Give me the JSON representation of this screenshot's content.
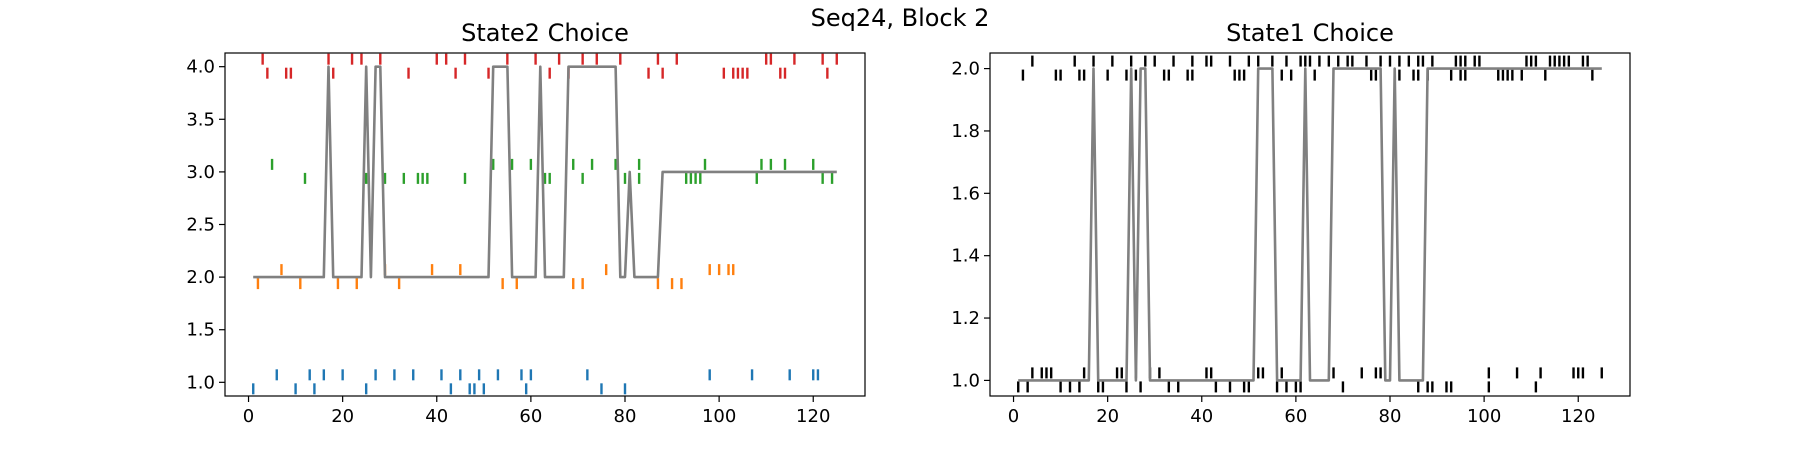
{
  "figure": {
    "suptitle": "Seq24, Block 2"
  },
  "chart_data": [
    {
      "type": "line",
      "title": "State2 Choice",
      "xlim": [
        -5,
        131
      ],
      "ylim": [
        0.87,
        4.13
      ],
      "xticks": [
        0,
        20,
        40,
        60,
        80,
        100,
        120
      ],
      "yticks": [
        1.0,
        1.5,
        2.0,
        2.5,
        3.0,
        3.5,
        4.0
      ],
      "ytick_labels": [
        "1.0",
        "1.5",
        "2.0",
        "2.5",
        "3.0",
        "3.5",
        "4.0"
      ],
      "colors": {
        "line": "#808080",
        "1": "#1f77b4",
        "2": "#ff7f0e",
        "3": "#2ca02c",
        "4": "#d62728"
      },
      "line": {
        "x": [
          1,
          16,
          17,
          18,
          24,
          25,
          26,
          27,
          28,
          29,
          51,
          52,
          55,
          56,
          61,
          62,
          63,
          64,
          67,
          68,
          78,
          79,
          80,
          81,
          82,
          83,
          87,
          88,
          125
        ],
        "y": [
          2,
          2,
          4,
          2,
          2,
          4,
          2,
          4,
          4,
          2,
          2,
          4,
          4,
          2,
          2,
          4,
          2,
          2,
          2,
          4,
          4,
          2,
          2,
          3,
          2,
          2,
          2,
          3,
          3
        ]
      },
      "markers": [
        {
          "level": 4,
          "up": [
            3,
            17,
            22,
            24,
            28,
            40,
            42,
            46,
            55,
            61,
            66,
            71,
            74,
            79,
            87,
            91,
            110,
            111,
            116,
            122,
            125
          ],
          "down": [
            4,
            8,
            9,
            18,
            34,
            44,
            51,
            62,
            64,
            68,
            85,
            88,
            101,
            103,
            104,
            105,
            106,
            113,
            114,
            123
          ]
        },
        {
          "level": 3,
          "up": [
            5,
            52,
            56,
            60,
            69,
            73,
            78,
            83,
            97,
            109,
            111,
            114,
            120
          ],
          "down": [
            12,
            25,
            29,
            33,
            36,
            37,
            38,
            46,
            63,
            64,
            71,
            80,
            83,
            93,
            94,
            95,
            96,
            108,
            122,
            124
          ]
        },
        {
          "level": 2,
          "up": [
            7,
            29,
            39,
            45,
            76,
            98,
            100,
            102,
            103
          ],
          "down": [
            2,
            11,
            19,
            23,
            32,
            54,
            57,
            69,
            71,
            87,
            90,
            92
          ]
        },
        {
          "level": 1,
          "up": [
            6,
            13,
            16,
            20,
            27,
            31,
            35,
            41,
            45,
            49,
            53,
            58,
            60,
            72,
            98,
            107,
            115,
            120,
            121
          ],
          "down": [
            1,
            10,
            14,
            25,
            43,
            47,
            48,
            50,
            59,
            75,
            80
          ]
        }
      ]
    },
    {
      "type": "line",
      "title": "State1 Choice",
      "xlim": [
        -5,
        131
      ],
      "ylim": [
        0.95,
        2.05
      ],
      "xticks": [
        0,
        20,
        40,
        60,
        80,
        100,
        120
      ],
      "yticks": [
        1.0,
        1.2,
        1.4,
        1.6,
        1.8,
        2.0
      ],
      "ytick_labels": [
        "1.0",
        "1.2",
        "1.4",
        "1.6",
        "1.8",
        "2.0"
      ],
      "colors": {
        "line": "#808080",
        "markers": "#000000"
      },
      "line": {
        "x": [
          1,
          16,
          17,
          18,
          24,
          25,
          26,
          27,
          28,
          29,
          51,
          52,
          55,
          56,
          61,
          62,
          63,
          64,
          67,
          68,
          78,
          79,
          80,
          81,
          82,
          83,
          87,
          88,
          125
        ],
        "y": [
          1,
          1,
          2,
          1,
          1,
          2,
          1,
          2,
          2,
          1,
          1,
          2,
          2,
          1,
          1,
          2,
          1,
          1,
          1,
          2,
          2,
          1,
          1,
          2,
          1,
          1,
          1,
          2,
          2
        ]
      },
      "markers": [
        {
          "level": 2,
          "up": [
            4,
            13,
            17,
            21,
            25,
            28,
            30,
            34,
            38,
            41,
            42,
            46,
            50,
            52,
            55,
            58,
            61,
            62,
            63,
            65,
            67,
            69,
            71,
            72,
            75,
            78,
            80,
            82,
            84,
            86,
            87,
            89,
            94,
            95,
            96,
            98,
            99,
            109,
            110,
            111,
            114,
            115,
            116,
            117,
            118,
            121,
            122
          ],
          "down": [
            2,
            9,
            10,
            14,
            15,
            20,
            24,
            26,
            32,
            33,
            37,
            38,
            47,
            48,
            49,
            57,
            59,
            64,
            76,
            77,
            82,
            85,
            86,
            88,
            93,
            95,
            96,
            103,
            104,
            105,
            106,
            108,
            113,
            123
          ]
        },
        {
          "level": 1,
          "up": [
            4,
            6,
            7,
            8,
            15,
            22,
            23,
            26,
            29,
            31,
            41,
            42,
            52,
            53,
            57,
            68,
            74,
            77,
            78,
            101,
            107,
            112,
            119,
            120,
            121,
            125
          ],
          "down": [
            1,
            3,
            10,
            12,
            14,
            18,
            19,
            24,
            27,
            33,
            35,
            43,
            46,
            49,
            50,
            56,
            58,
            60,
            61,
            70,
            86,
            88,
            89,
            92,
            93,
            101,
            111
          ]
        }
      ]
    }
  ]
}
